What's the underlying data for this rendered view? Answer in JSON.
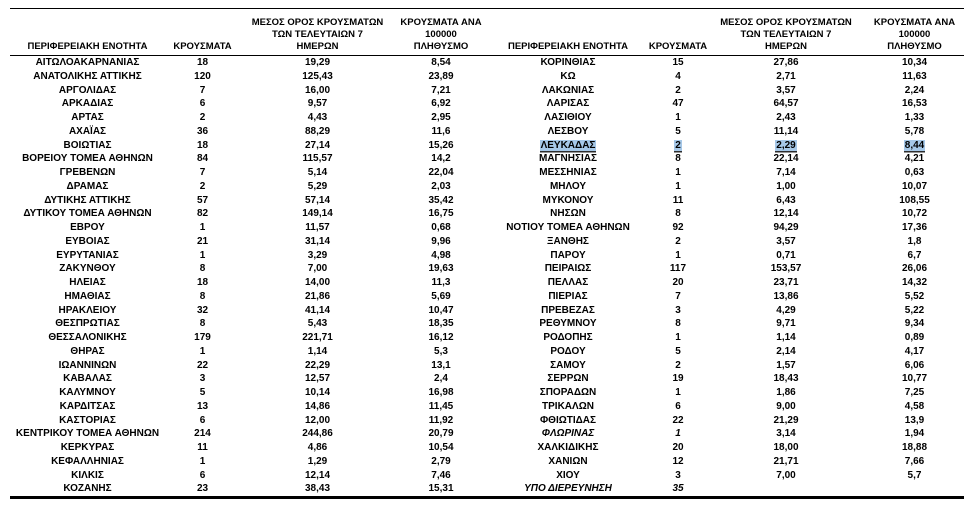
{
  "colors": {
    "selection_highlight": "#a6c8e8",
    "text": "#000000",
    "rule": "#000000"
  },
  "selection": {
    "region": "ΛΕΥΚΑΔΑΣ",
    "selected_values": [
      "ΛΕΥΚΑΔΑΣ",
      "2",
      "2,29",
      "8,44"
    ]
  },
  "table": {
    "headers": {
      "region": "ΠΕΡΙΦΕΡΕΙΑΚΗ ΕΝΟΤΗΤΑ",
      "cases": "ΚΡΟΥΣΜΑΤΑ",
      "avg7": "ΜΕΣΟΣ ΟΡΟΣ ΚΡΟΥΣΜΑΤΩΝ\nΤΩΝ ΤΕΛΕΥΤΑΙΩΝ 7\nΗΜΕΡΩΝ",
      "per100k": "ΚΡΟΥΣΜΑΤΑ ΑΝΑ 100000\nΠΛΗΘΥΣΜΟ"
    },
    "left_rows": [
      {
        "name": "ΑΙΤΩΛΟΑΚΑΡΝΑΝΙΑΣ",
        "cases": "18",
        "avg7": "19,29",
        "per100k": "8,54"
      },
      {
        "name": "ΑΝΑΤΟΛΙΚΗΣ ΑΤΤΙΚΗΣ",
        "cases": "120",
        "avg7": "125,43",
        "per100k": "23,89"
      },
      {
        "name": "ΑΡΓΟΛΙΔΑΣ",
        "cases": "7",
        "avg7": "16,00",
        "per100k": "7,21"
      },
      {
        "name": "ΑΡΚΑΔΙΑΣ",
        "cases": "6",
        "avg7": "9,57",
        "per100k": "6,92"
      },
      {
        "name": "ΑΡΤΑΣ",
        "cases": "2",
        "avg7": "4,43",
        "per100k": "2,95"
      },
      {
        "name": "ΑΧΑΪΑΣ",
        "cases": "36",
        "avg7": "88,29",
        "per100k": "11,6"
      },
      {
        "name": "ΒΟΙΩΤΙΑΣ",
        "cases": "18",
        "avg7": "27,14",
        "per100k": "15,26"
      },
      {
        "name": "ΒΟΡΕΙΟΥ ΤΟΜΕΑ ΑΘΗΝΩΝ",
        "cases": "84",
        "avg7": "115,57",
        "per100k": "14,2"
      },
      {
        "name": "ΓΡΕΒΕΝΩΝ",
        "cases": "7",
        "avg7": "5,14",
        "per100k": "22,04"
      },
      {
        "name": "ΔΡΑΜΑΣ",
        "cases": "2",
        "avg7": "5,29",
        "per100k": "2,03"
      },
      {
        "name": "ΔΥΤΙΚΗΣ ΑΤΤΙΚΗΣ",
        "cases": "57",
        "avg7": "57,14",
        "per100k": "35,42"
      },
      {
        "name": "ΔΥΤΙΚΟΥ ΤΟΜΕΑ ΑΘΗΝΩΝ",
        "cases": "82",
        "avg7": "149,14",
        "per100k": "16,75"
      },
      {
        "name": "ΕΒΡΟΥ",
        "cases": "1",
        "avg7": "11,57",
        "per100k": "0,68"
      },
      {
        "name": "ΕΥΒΟΙΑΣ",
        "cases": "21",
        "avg7": "31,14",
        "per100k": "9,96"
      },
      {
        "name": "ΕΥΡΥΤΑΝΙΑΣ",
        "cases": "1",
        "avg7": "3,29",
        "per100k": "4,98"
      },
      {
        "name": "ΖΑΚΥΝΘΟΥ",
        "cases": "8",
        "avg7": "7,00",
        "per100k": "19,63"
      },
      {
        "name": "ΗΛΕΙΑΣ",
        "cases": "18",
        "avg7": "14,00",
        "per100k": "11,3"
      },
      {
        "name": "ΗΜΑΘΙΑΣ",
        "cases": "8",
        "avg7": "21,86",
        "per100k": "5,69"
      },
      {
        "name": "ΗΡΑΚΛΕΙΟΥ",
        "cases": "32",
        "avg7": "41,14",
        "per100k": "10,47"
      },
      {
        "name": "ΘΕΣΠΡΩΤΙΑΣ",
        "cases": "8",
        "avg7": "5,43",
        "per100k": "18,35"
      },
      {
        "name": "ΘΕΣΣΑΛΟΝΙΚΗΣ",
        "cases": "179",
        "avg7": "221,71",
        "per100k": "16,12"
      },
      {
        "name": "ΘΗΡΑΣ",
        "cases": "1",
        "avg7": "1,14",
        "per100k": "5,3"
      },
      {
        "name": "ΙΩΑΝΝΙΝΩΝ",
        "cases": "22",
        "avg7": "22,29",
        "per100k": "13,1"
      },
      {
        "name": "ΚΑΒΑΛΑΣ",
        "cases": "3",
        "avg7": "12,57",
        "per100k": "2,4"
      },
      {
        "name": "ΚΑΛΥΜΝΟΥ",
        "cases": "5",
        "avg7": "10,14",
        "per100k": "16,98"
      },
      {
        "name": "ΚΑΡΔΙΤΣΑΣ",
        "cases": "13",
        "avg7": "14,86",
        "per100k": "11,45"
      },
      {
        "name": "ΚΑΣΤΟΡΙΑΣ",
        "cases": "6",
        "avg7": "12,00",
        "per100k": "11,92"
      },
      {
        "name": "ΚΕΝΤΡΙΚΟΥ ΤΟΜΕΑ ΑΘΗΝΩΝ",
        "cases": "214",
        "avg7": "244,86",
        "per100k": "20,79"
      },
      {
        "name": "ΚΕΡΚΥΡΑΣ",
        "cases": "11",
        "avg7": "4,86",
        "per100k": "10,54"
      },
      {
        "name": "ΚΕΦΑΛΛΗΝΙΑΣ",
        "cases": "1",
        "avg7": "1,29",
        "per100k": "2,79"
      },
      {
        "name": "ΚΙΛΚΙΣ",
        "cases": "6",
        "avg7": "12,14",
        "per100k": "7,46"
      },
      {
        "name": "ΚΟΖΑΝΗΣ",
        "cases": "23",
        "avg7": "38,43",
        "per100k": "15,31"
      }
    ],
    "right_rows": [
      {
        "name": "ΚΟΡΙΝΘΙΑΣ",
        "cases": "15",
        "avg7": "27,86",
        "per100k": "10,34"
      },
      {
        "name": "ΚΩ",
        "cases": "4",
        "avg7": "2,71",
        "per100k": "11,63"
      },
      {
        "name": "ΛΑΚΩΝΙΑΣ",
        "cases": "2",
        "avg7": "3,57",
        "per100k": "2,24"
      },
      {
        "name": "ΛΑΡΙΣΑΣ",
        "cases": "47",
        "avg7": "64,57",
        "per100k": "16,53"
      },
      {
        "name": "ΛΑΣΙΘΙΟΥ",
        "cases": "1",
        "avg7": "2,43",
        "per100k": "1,33"
      },
      {
        "name": "ΛΕΣΒΟΥ",
        "cases": "5",
        "avg7": "11,14",
        "per100k": "5,78"
      },
      {
        "name": "ΛΕΥΚΑΔΑΣ",
        "cases": "2",
        "avg7": "2,29",
        "per100k": "8,44",
        "highlight": true
      },
      {
        "name": "ΜΑΓΝΗΣΙΑΣ",
        "cases": "8",
        "avg7": "22,14",
        "per100k": "4,21"
      },
      {
        "name": "ΜΕΣΣΗΝΙΑΣ",
        "cases": "1",
        "avg7": "7,14",
        "per100k": "0,63"
      },
      {
        "name": "ΜΗΛΟΥ",
        "cases": "1",
        "avg7": "1,00",
        "per100k": "10,07"
      },
      {
        "name": "ΜΥΚΟΝΟΥ",
        "cases": "11",
        "avg7": "6,43",
        "per100k": "108,55"
      },
      {
        "name": "ΝΗΣΩΝ",
        "cases": "8",
        "avg7": "12,14",
        "per100k": "10,72"
      },
      {
        "name": "ΝΟΤΙΟΥ ΤΟΜΕΑ ΑΘΗΝΩΝ",
        "cases": "92",
        "avg7": "94,29",
        "per100k": "17,36"
      },
      {
        "name": "ΞΑΝΘΗΣ",
        "cases": "2",
        "avg7": "3,57",
        "per100k": "1,8"
      },
      {
        "name": "ΠΑΡΟΥ",
        "cases": "1",
        "avg7": "0,71",
        "per100k": "6,7"
      },
      {
        "name": "ΠΕΙΡΑΙΩΣ",
        "cases": "117",
        "avg7": "153,57",
        "per100k": "26,06"
      },
      {
        "name": "ΠΕΛΛΑΣ",
        "cases": "20",
        "avg7": "23,71",
        "per100k": "14,32"
      },
      {
        "name": "ΠΙΕΡΙΑΣ",
        "cases": "7",
        "avg7": "13,86",
        "per100k": "5,52"
      },
      {
        "name": "ΠΡΕΒΕΖΑΣ",
        "cases": "3",
        "avg7": "4,29",
        "per100k": "5,22"
      },
      {
        "name": "ΡΕΘΥΜΝΟΥ",
        "cases": "8",
        "avg7": "9,71",
        "per100k": "9,34"
      },
      {
        "name": "ΡΟΔΟΠΗΣ",
        "cases": "1",
        "avg7": "1,14",
        "per100k": "0,89"
      },
      {
        "name": "ΡΟΔΟΥ",
        "cases": "5",
        "avg7": "2,14",
        "per100k": "4,17"
      },
      {
        "name": "ΣΑΜΟΥ",
        "cases": "2",
        "avg7": "1,57",
        "per100k": "6,06"
      },
      {
        "name": "ΣΕΡΡΩΝ",
        "cases": "19",
        "avg7": "18,43",
        "per100k": "10,77"
      },
      {
        "name": "ΣΠΟΡΑΔΩΝ",
        "cases": "1",
        "avg7": "1,86",
        "per100k": "7,25"
      },
      {
        "name": "ΤΡΙΚΑΛΩΝ",
        "cases": "6",
        "avg7": "9,00",
        "per100k": "4,58"
      },
      {
        "name": "ΦΘΙΩΤΙΔΑΣ",
        "cases": "22",
        "avg7": "21,29",
        "per100k": "13,9"
      },
      {
        "name": "ΦΛΩΡΙΝΑΣ",
        "cases": "1",
        "avg7": "3,14",
        "per100k": "1,94",
        "italic": true
      },
      {
        "name": "ΧΑΛΚΙΔΙΚΗΣ",
        "cases": "20",
        "avg7": "18,00",
        "per100k": "18,88"
      },
      {
        "name": "ΧΑΝΙΩΝ",
        "cases": "12",
        "avg7": "21,71",
        "per100k": "7,66"
      },
      {
        "name": "ΧΙΟΥ",
        "cases": "3",
        "avg7": "7,00",
        "per100k": "5,7"
      },
      {
        "name": "ΥΠΟ ΔΙΕΡΕΥΝΗΣΗ",
        "cases": "35",
        "avg7": "",
        "per100k": "",
        "italic": true
      }
    ]
  }
}
